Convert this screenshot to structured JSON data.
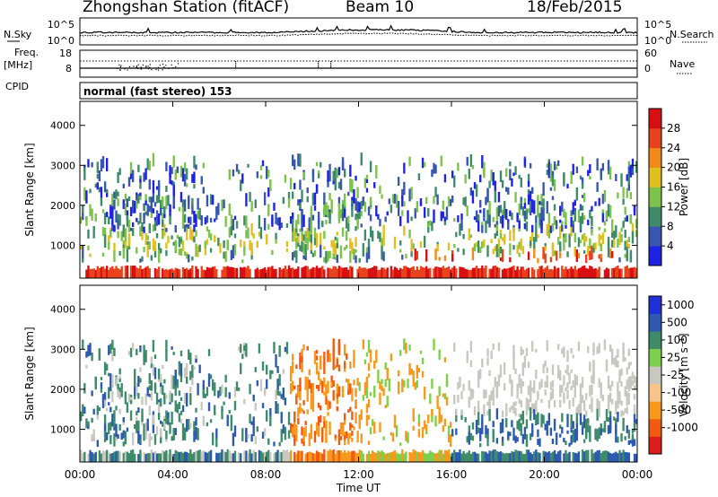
{
  "header": {
    "station": "Zhongshan Station (fitACF)",
    "beam": "Beam 10",
    "date": "18/Feb/2015"
  },
  "summary_panels": {
    "nsky_label": "N.Sky",
    "nsky_ticks": [
      "10^5",
      "10^0"
    ],
    "nsearch_label": "N.Search",
    "nsearch_ticks": [
      "10^5",
      "10^0"
    ],
    "freq_label_1": "Freq.",
    "freq_label_2": "[MHz]",
    "freq_ticks": [
      "18",
      "8"
    ],
    "nave_label": "Nave",
    "nave_ticks": [
      "60",
      "0"
    ],
    "cpid_label": "CPID",
    "cpid_text": "normal (fast stereo) 153"
  },
  "colors": {
    "power": [
      "#1e22e6",
      "#3855b0",
      "#3e8b6a",
      "#7dc34b",
      "#e0c020",
      "#f08a1c",
      "#e8421c",
      "#d80f12"
    ],
    "velocity_neg": [
      "#dd1d1d",
      "#f25a12",
      "#f7991c",
      "#f8c48a"
    ],
    "velocity_zero": "#c8c8c0",
    "velocity_pos": [
      "#7dd04b",
      "#3e8b6a",
      "#2d5ab0",
      "#1e30d8"
    ]
  },
  "chart_data": [
    {
      "type": "heatmap",
      "title": "",
      "xlabel": "",
      "ylabel": "Slant Range [km]",
      "xlim": [
        "00:00",
        "00:00"
      ],
      "ylim": [
        180,
        4600
      ],
      "x_ticks": [
        "00:00",
        "04:00",
        "08:00",
        "12:00",
        "16:00",
        "20:00",
        "00:00"
      ],
      "y_ticks": [
        1000,
        2000,
        3000,
        4000
      ],
      "colorbar": {
        "label": "Power [dB]",
        "range": [
          0,
          32
        ],
        "ticks": [
          4,
          8,
          12,
          16,
          20,
          24,
          28
        ]
      }
    },
    {
      "type": "heatmap",
      "title": "",
      "xlabel": "Time UT",
      "ylabel": "Slant Range [km]",
      "xlim": [
        "00:00",
        "00:00"
      ],
      "ylim": [
        180,
        4600
      ],
      "x_ticks": [
        "00:00",
        "04:00",
        "08:00",
        "12:00",
        "16:00",
        "20:00",
        "00:00"
      ],
      "y_ticks": [
        1000,
        2000,
        3000,
        4000
      ],
      "colorbar": {
        "label": "Velocity [m s⁻¹]",
        "ticks": [
          "1000",
          "500",
          "100",
          "25",
          "-25",
          "-100",
          "-500",
          "-1000"
        ]
      }
    }
  ]
}
